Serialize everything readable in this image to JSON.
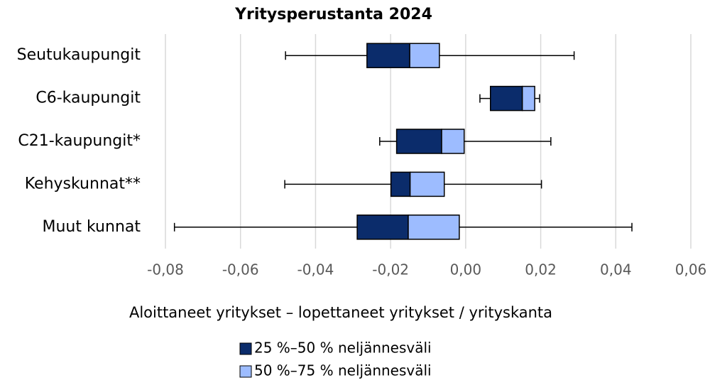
{
  "chart_data": {
    "type": "box",
    "title": "Yritysperustanta 2024",
    "x_label": "Aloittaneet yritykset – lopettaneet yritykset / yrityskanta",
    "categories": [
      "Seutukaupungit",
      "C6-kaupungit",
      "C21-kaupungit*",
      "Kehyskunnat**",
      "Muut kunnat"
    ],
    "min": [
      -0.048,
      0.0038,
      -0.0229,
      -0.0482,
      -0.0776
    ],
    "q1": [
      -0.0263,
      0.0066,
      -0.0184,
      -0.0199,
      -0.0289
    ],
    "median": [
      -0.0149,
      0.0151,
      -0.0064,
      -0.0148,
      -0.0153
    ],
    "q3": [
      -0.007,
      0.0184,
      -0.0004,
      -0.0057,
      -0.0017
    ],
    "max": [
      0.0289,
      0.0197,
      0.0227,
      0.0202,
      0.0443
    ],
    "legend": [
      {
        "name": "25 %–50 % neljännesväli",
        "color": "#0b2c6b"
      },
      {
        "name": "50 %–75 % neljännesväli",
        "color": "#9dbcff"
      }
    ],
    "xlim": [
      -0.08,
      0.06
    ],
    "xticks": [
      {
        "value": -0.08,
        "label": "-0,08"
      },
      {
        "value": -0.06,
        "label": "-0,06"
      },
      {
        "value": -0.04,
        "label": "-0,04"
      },
      {
        "value": -0.02,
        "label": "-0,02"
      },
      {
        "value": 0,
        "label": "0,00"
      },
      {
        "value": 0.02,
        "label": "0,02"
      },
      {
        "value": 0.04,
        "label": "0,04"
      },
      {
        "value": 0.06,
        "label": "0,06"
      }
    ],
    "grid": true
  }
}
